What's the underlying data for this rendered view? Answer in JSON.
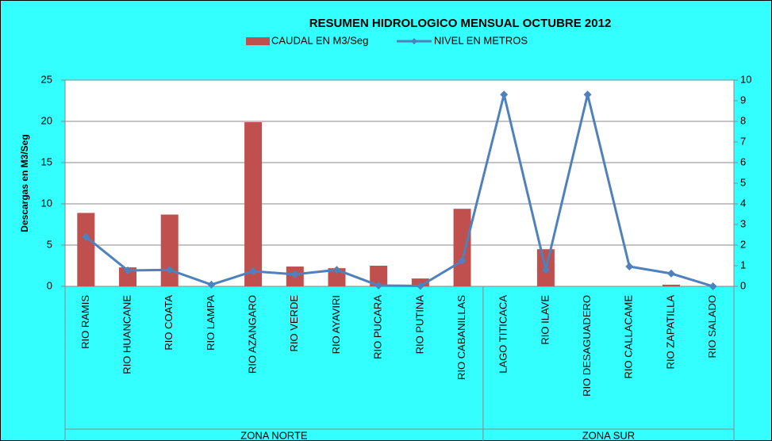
{
  "chart_data": {
    "type": "bar_line",
    "title": "RESUMEN HIDROLOGICO MENSUAL OCTUBRE 2012",
    "y_label": "Descargas en M3/Seg",
    "categories": [
      "RIO RAMIS",
      "RIO HUANCANE",
      "RIO COATA",
      "RIO LAMPA",
      "RIO  AZANGARO",
      "RIO VERDE",
      "RIO  AYAVIRI",
      "RIO PUCARA",
      "RIO PUTINA",
      "RIO CABANILLAS",
      "LAGO TITICACA",
      "RIO ILAVE",
      "RIO DESAGUADERO",
      "RIO CALLACAME",
      "RIO ZAPATILLA",
      "RIO SALADO"
    ],
    "groups": [
      {
        "label": "ZONA NORTE",
        "count": 10
      },
      {
        "label": "ZONA SUR",
        "count": 6
      }
    ],
    "series": [
      {
        "name": "CAUDAL EN M3/Seg",
        "type": "bar",
        "color": "#c0504d",
        "values": [
          8.9,
          2.3,
          8.7,
          0,
          19.9,
          2.4,
          2.2,
          2.5,
          0.95,
          9.4,
          0,
          4.5,
          0,
          0,
          0.2,
          0
        ]
      },
      {
        "name": "NIVEL EN METROS",
        "type": "line",
        "axis": "y2",
        "color": "#4f81bd",
        "values": [
          2.4,
          0.77,
          0.8,
          0.08,
          0.73,
          0.58,
          0.8,
          0.04,
          0.02,
          1.23,
          9.3,
          0.8,
          9.3,
          0.96,
          0.62,
          0
        ]
      }
    ],
    "ylim": [
      0,
      25
    ],
    "yticks": [
      0,
      5,
      10,
      15,
      20,
      25
    ],
    "y2lim": [
      0,
      10
    ],
    "y2ticks": [
      0,
      1,
      2,
      3,
      4,
      5,
      6,
      7,
      8,
      9,
      10
    ],
    "grid": true
  }
}
